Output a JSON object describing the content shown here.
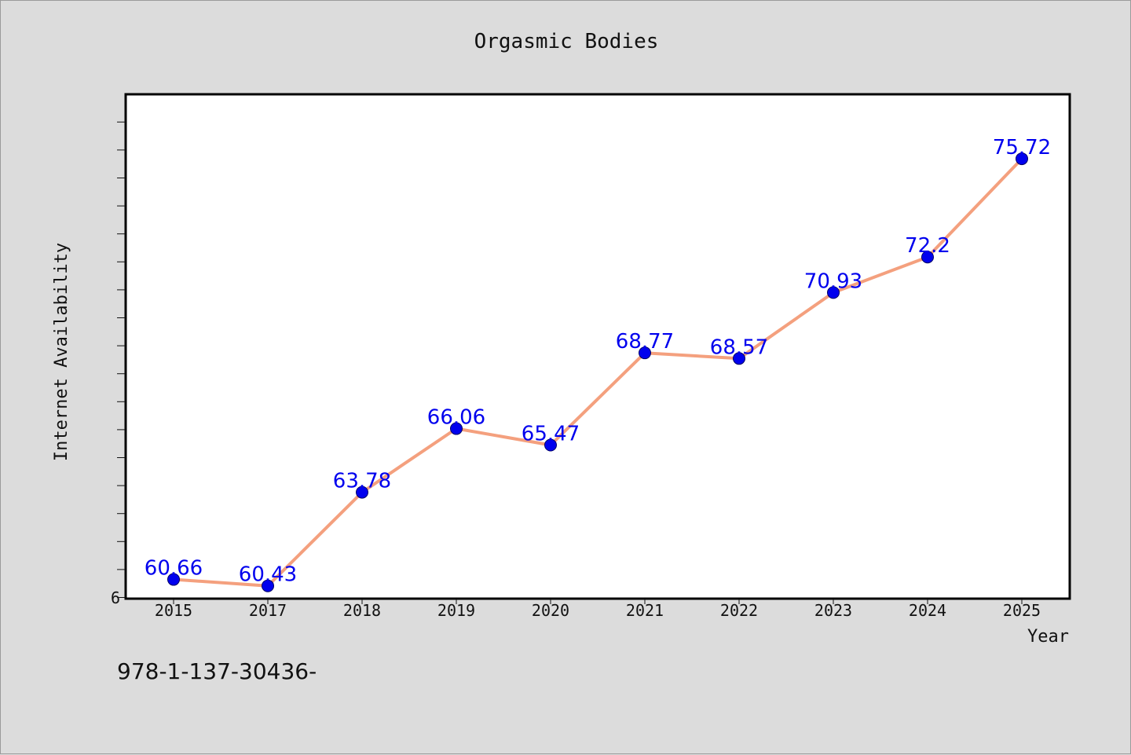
{
  "chart_data": {
    "type": "line",
    "title": "Orgasmic Bodies",
    "xlabel": "Year",
    "ylabel": "Internet Availability",
    "categories": [
      "2015",
      "2017",
      "2018",
      "2019",
      "2020",
      "2021",
      "2022",
      "2023",
      "2024",
      "2025"
    ],
    "series": [
      {
        "values": [
          60.66,
          60.43,
          63.78,
          66.06,
          65.47,
          68.77,
          68.57,
          70.93,
          72.2,
          75.72
        ],
        "data_labels": [
          "60.66",
          "60.43",
          "63.78",
          "66.06",
          "65.47",
          "68.77",
          "68.57",
          "70.93",
          "72.2",
          "75.72"
        ]
      }
    ],
    "y_tick_label": "6",
    "ylim": [
      60.0,
      78.0
    ],
    "grid": false,
    "legend": "none",
    "colors": {
      "line": "#f4a07e",
      "marker": "#0000ee",
      "label": "#0000ee",
      "background": "#dcdcdc",
      "plot_area": "#ffffff"
    }
  },
  "footnote": "978-1-137-30436-"
}
